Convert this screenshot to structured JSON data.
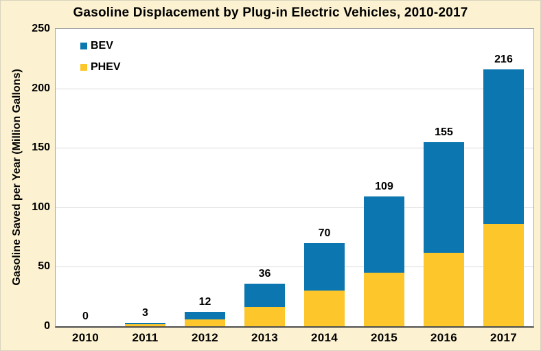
{
  "chart_data": {
    "type": "bar",
    "stacked": true,
    "title": "Gasoline Displacement by Plug-in Electric Vehicles, 2010-2017",
    "ylabel": "Gasoline Saved per Year (Million Gallons)",
    "xlabel": "",
    "categories": [
      "2010",
      "2011",
      "2012",
      "2013",
      "2014",
      "2015",
      "2016",
      "2017"
    ],
    "series": [
      {
        "name": "BEV",
        "color": "#0B76AF",
        "values": [
          0,
          1,
          6,
          20,
          40,
          64,
          93,
          130
        ]
      },
      {
        "name": "PHEV",
        "color": "#FDC72B",
        "values": [
          0,
          2,
          6,
          16,
          30,
          45,
          62,
          86
        ]
      }
    ],
    "totals": [
      0,
      3,
      12,
      36,
      70,
      109,
      155,
      216
    ],
    "ylim": [
      0,
      250
    ],
    "yticks": [
      0,
      50,
      100,
      150,
      200,
      250
    ],
    "grid": "horizontal",
    "legend_position": "top-left",
    "colors": {
      "background": "#FCF2D1",
      "plot_background": "#FFFFFF",
      "gridline": "#D9D9D9",
      "plot_border": "#A6A6A6",
      "axis_line": "#4D4D4D",
      "text": "#000000"
    }
  }
}
